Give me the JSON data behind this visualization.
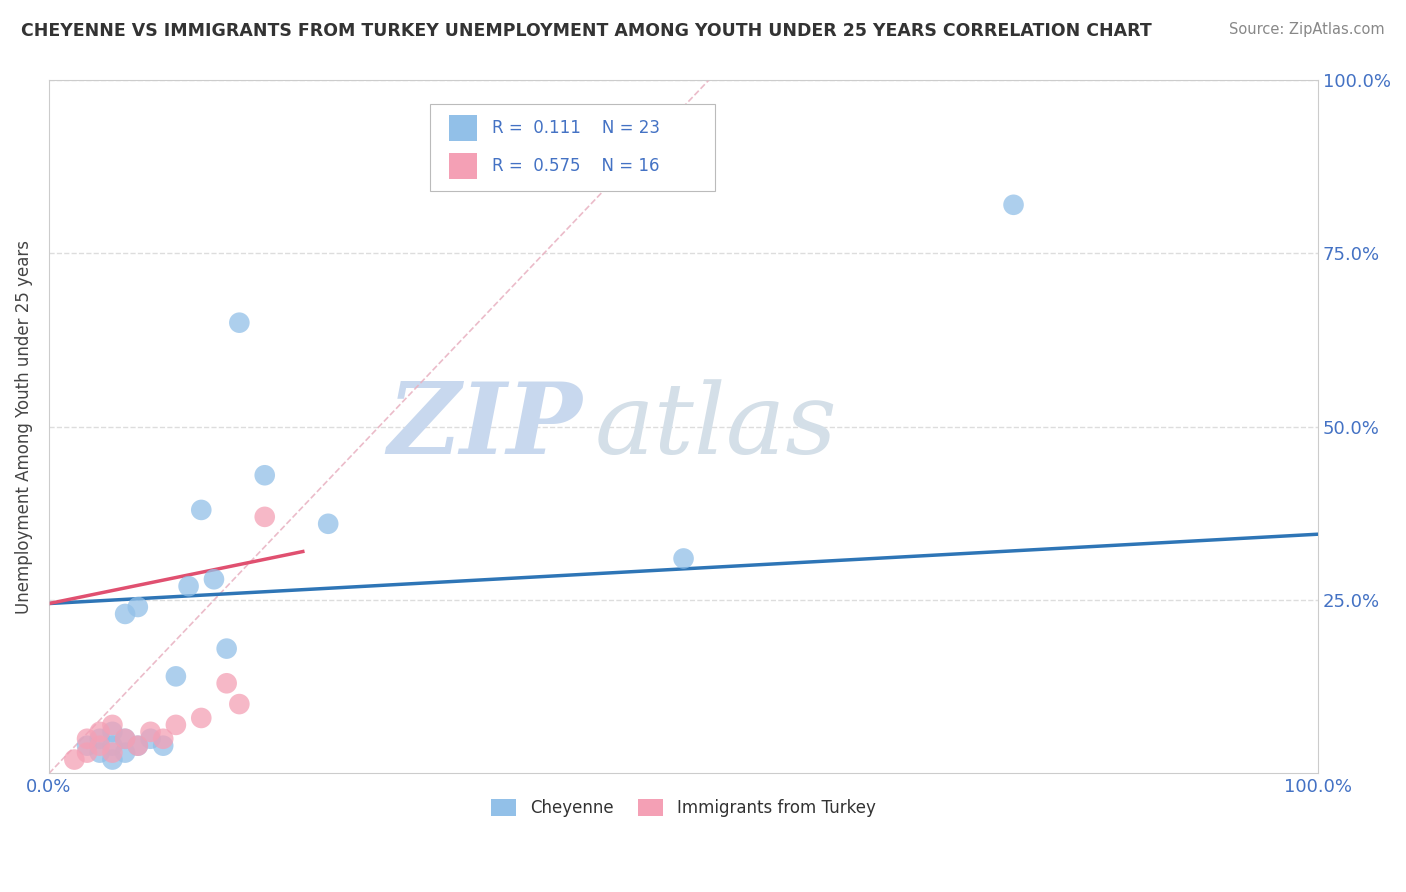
{
  "title": "CHEYENNE VS IMMIGRANTS FROM TURKEY UNEMPLOYMENT AMONG YOUTH UNDER 25 YEARS CORRELATION CHART",
  "source": "Source: ZipAtlas.com",
  "ylabel": "Unemployment Among Youth under 25 years",
  "xlim": [
    0,
    1
  ],
  "ylim": [
    0,
    1
  ],
  "cheyenne_color": "#92C0E8",
  "turkey_color": "#F4A0B5",
  "cheyenne_line_color": "#2E75B6",
  "turkey_line_color": "#E05070",
  "diag_color": "#E8B0C0",
  "watermark_zip": "ZIP",
  "watermark_atlas": "atlas",
  "background_color": "#FFFFFF",
  "grid_color": "#DDDDDD",
  "tick_color": "#4472C4",
  "cheyenne_x": [
    0.03,
    0.04,
    0.04,
    0.05,
    0.05,
    0.05,
    0.06,
    0.06,
    0.06,
    0.07,
    0.07,
    0.08,
    0.09,
    0.1,
    0.11,
    0.12,
    0.13,
    0.14,
    0.15,
    0.17,
    0.22,
    0.5,
    0.76
  ],
  "cheyenne_y": [
    0.04,
    0.03,
    0.05,
    0.02,
    0.04,
    0.06,
    0.03,
    0.05,
    0.23,
    0.04,
    0.24,
    0.05,
    0.04,
    0.14,
    0.27,
    0.38,
    0.28,
    0.18,
    0.65,
    0.43,
    0.36,
    0.31,
    0.82
  ],
  "turkey_x": [
    0.02,
    0.03,
    0.03,
    0.04,
    0.04,
    0.05,
    0.05,
    0.06,
    0.07,
    0.08,
    0.09,
    0.1,
    0.12,
    0.14,
    0.15,
    0.17
  ],
  "turkey_y": [
    0.02,
    0.03,
    0.05,
    0.04,
    0.06,
    0.03,
    0.07,
    0.05,
    0.04,
    0.06,
    0.05,
    0.07,
    0.08,
    0.13,
    0.1,
    0.37
  ],
  "cheyenne_line_x0": 0.0,
  "cheyenne_line_y0": 0.245,
  "cheyenne_line_x1": 1.0,
  "cheyenne_line_y1": 0.345,
  "turkey_line_x0": 0.0,
  "turkey_line_y0": 0.245,
  "turkey_line_x1": 0.2,
  "turkey_line_y1": 0.32
}
